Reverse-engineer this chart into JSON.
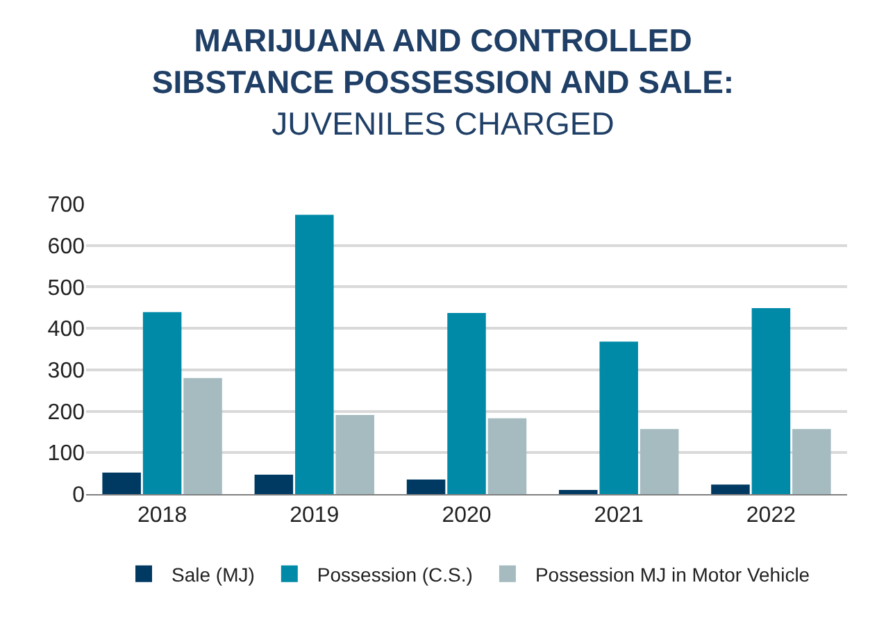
{
  "chart_data": {
    "type": "bar",
    "title": "MARIJUANA AND CONTROLLED SIBSTANCE POSSESSION AND SALE:",
    "subtitle": "JUVENILES CHARGED",
    "categories": [
      "2018",
      "2019",
      "2020",
      "2021",
      "2022"
    ],
    "series": [
      {
        "name": "Sale (MJ)",
        "color": "#003a63",
        "values": [
          52,
          47,
          35,
          10,
          23
        ]
      },
      {
        "name": "Possession (C.S.)",
        "color": "#008aa8",
        "values": [
          439,
          674,
          437,
          368,
          449
        ]
      },
      {
        "name": "Possession MJ in Motor Vehicle",
        "color": "#a5bbc0",
        "values": [
          280,
          191,
          183,
          157,
          157
        ]
      }
    ],
    "ylim": [
      0,
      700
    ],
    "yticks": [
      0,
      100,
      200,
      300,
      400,
      500,
      600,
      700
    ],
    "grid": "y",
    "legend": "bottom"
  }
}
